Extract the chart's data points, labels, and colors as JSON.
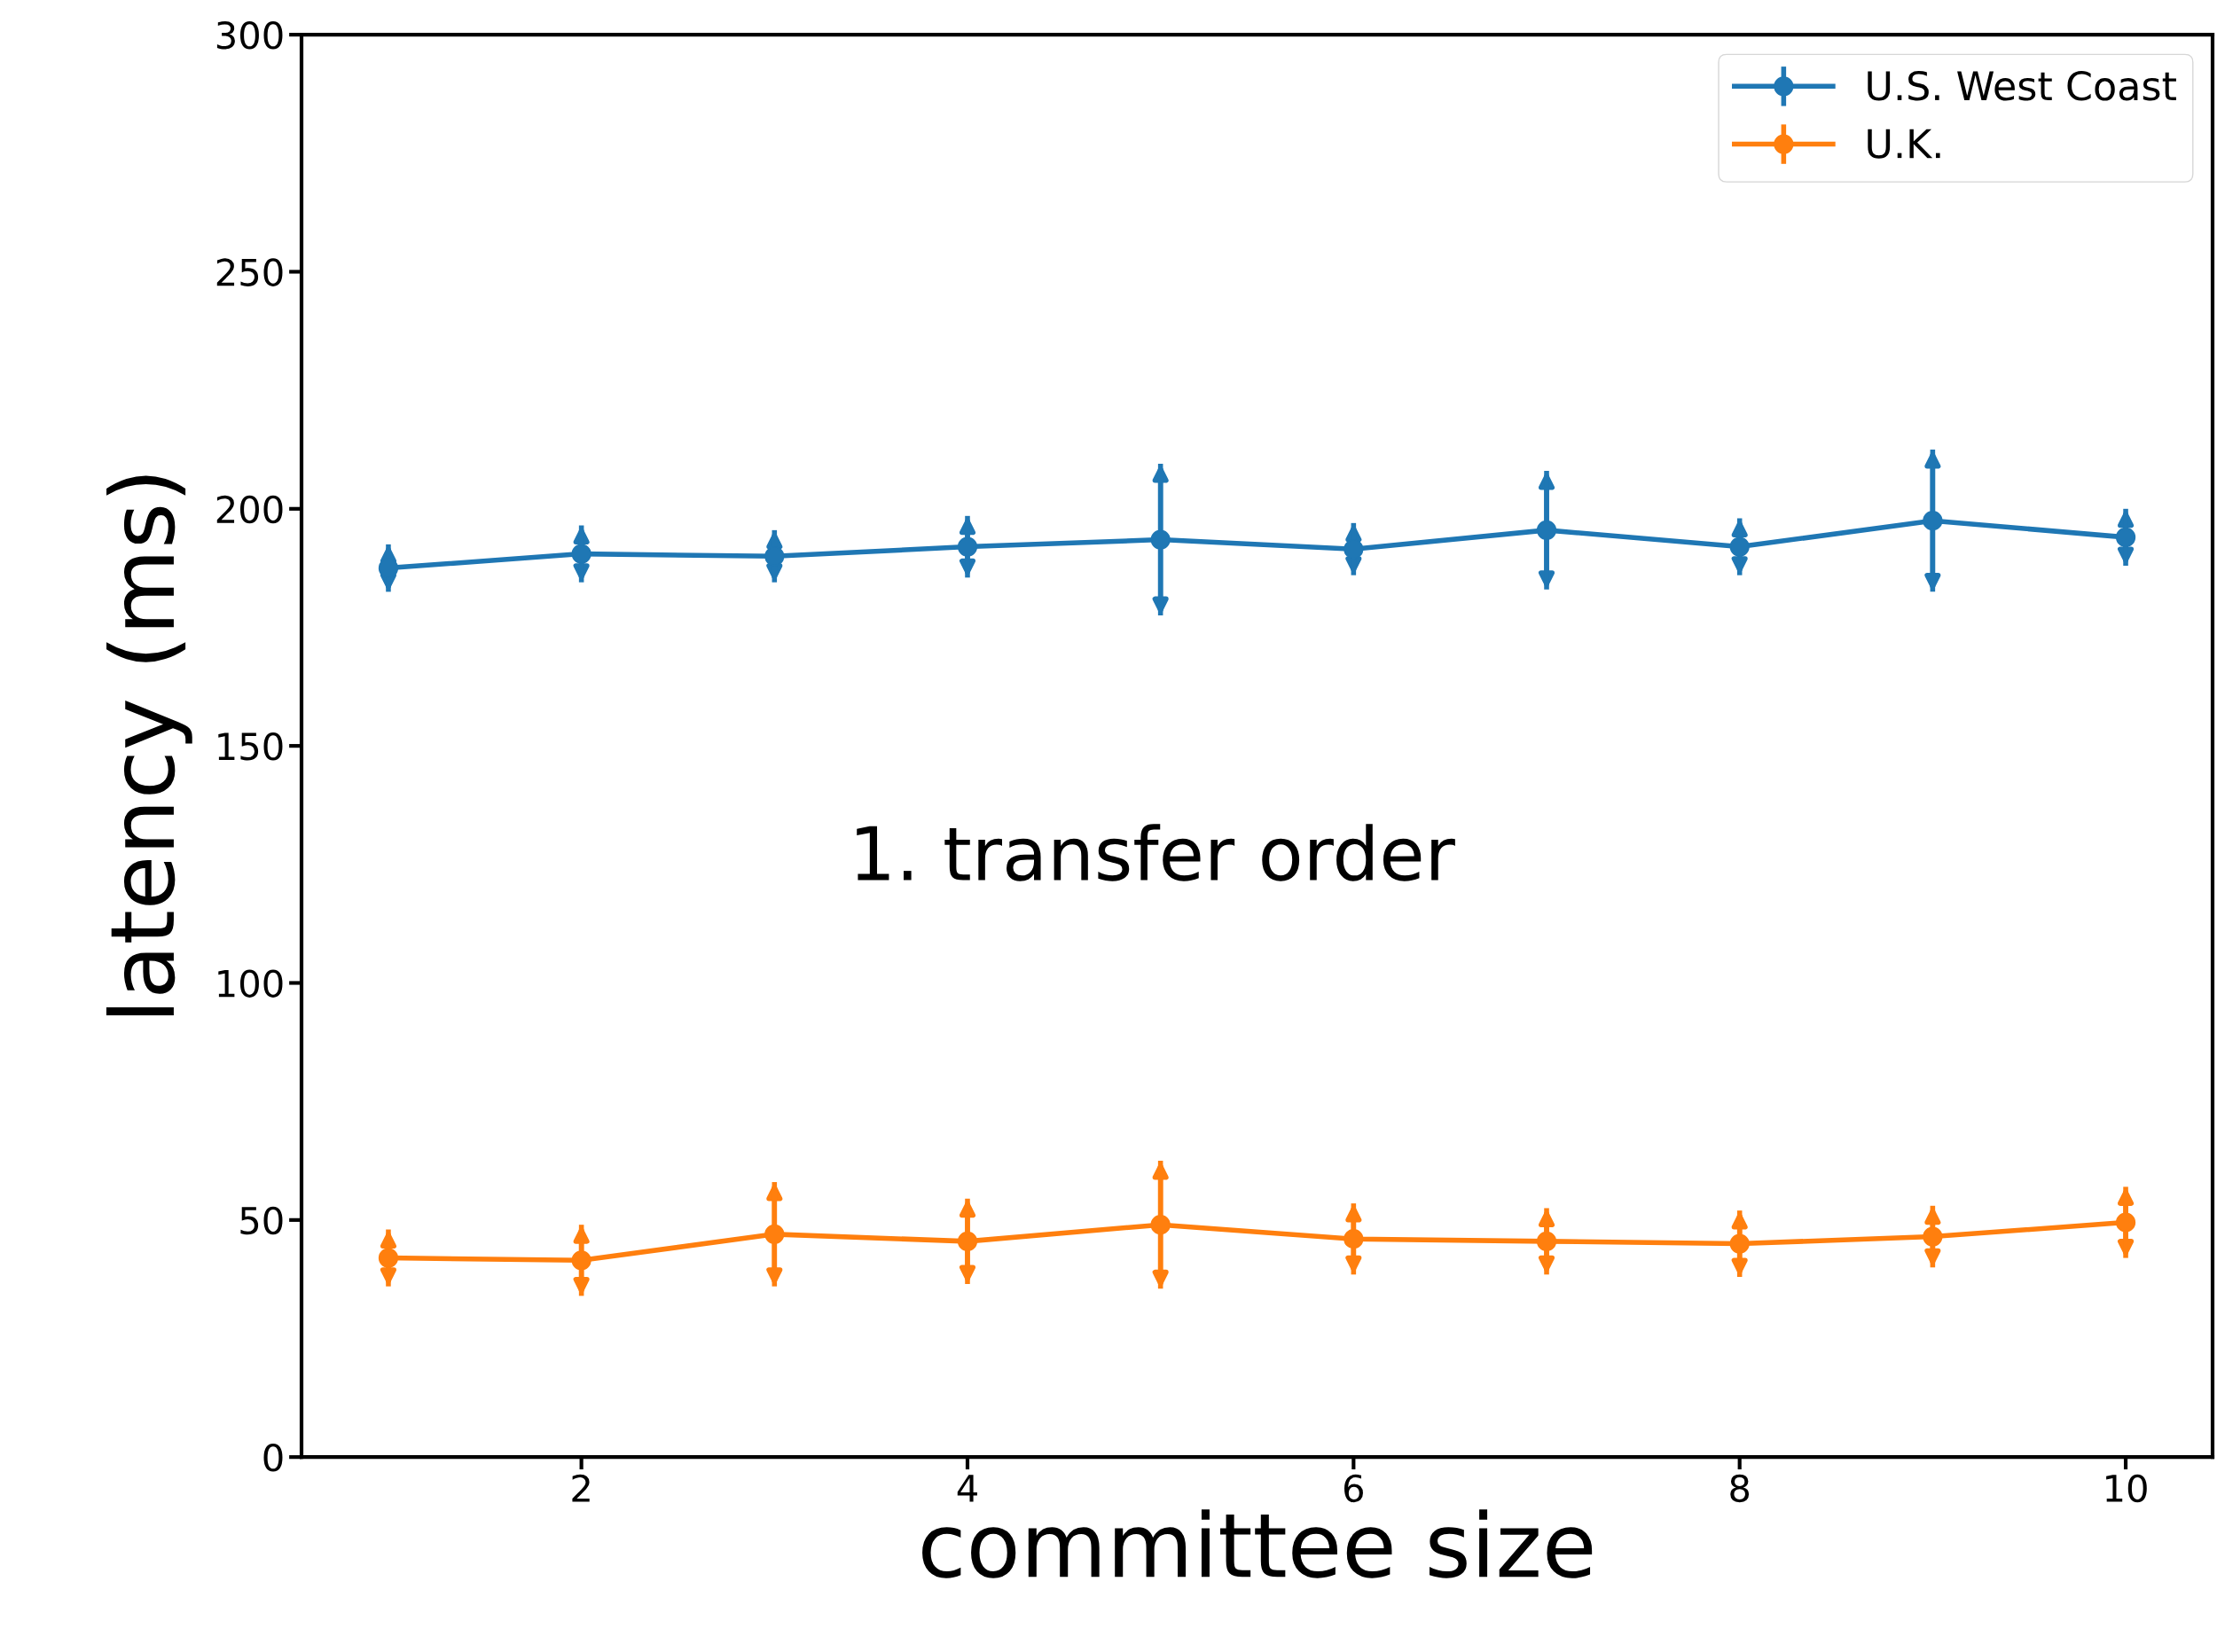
{
  "chart_data": {
    "type": "line",
    "xlabel": "committee size",
    "ylabel": "latency (ms)",
    "x": [
      1,
      2,
      3,
      4,
      5,
      6,
      7,
      8,
      9,
      10
    ],
    "series": [
      {
        "name": "U.S. West Coast",
        "color": "#1f77b4",
        "values": [
          187.5,
          190.5,
          190,
          192,
          193.5,
          191.5,
          195.5,
          192,
          197.5,
          194
        ],
        "errors": [
          5,
          6,
          5.5,
          6.5,
          16,
          5.5,
          12.5,
          6,
          15,
          6
        ]
      },
      {
        "name": "U.K.",
        "color": "#ff7f0e",
        "values": [
          42,
          41.5,
          47,
          45.5,
          49,
          46,
          45.5,
          45,
          46.5,
          49.5
        ],
        "errors": [
          6,
          7.5,
          11,
          9,
          13.5,
          7.5,
          7,
          7,
          6.5,
          7.5
        ]
      }
    ],
    "xlim": [
      0.55,
      10.45
    ],
    "xticks": [
      2,
      4,
      6,
      8,
      10
    ],
    "ylim": [
      0,
      300
    ],
    "yticks": [
      0,
      50,
      100,
      150,
      200,
      250,
      300
    ],
    "annotations": [
      "1. transfer order"
    ],
    "marker": "circle",
    "line_style": "solid",
    "grid": false,
    "legend": "top right"
  }
}
